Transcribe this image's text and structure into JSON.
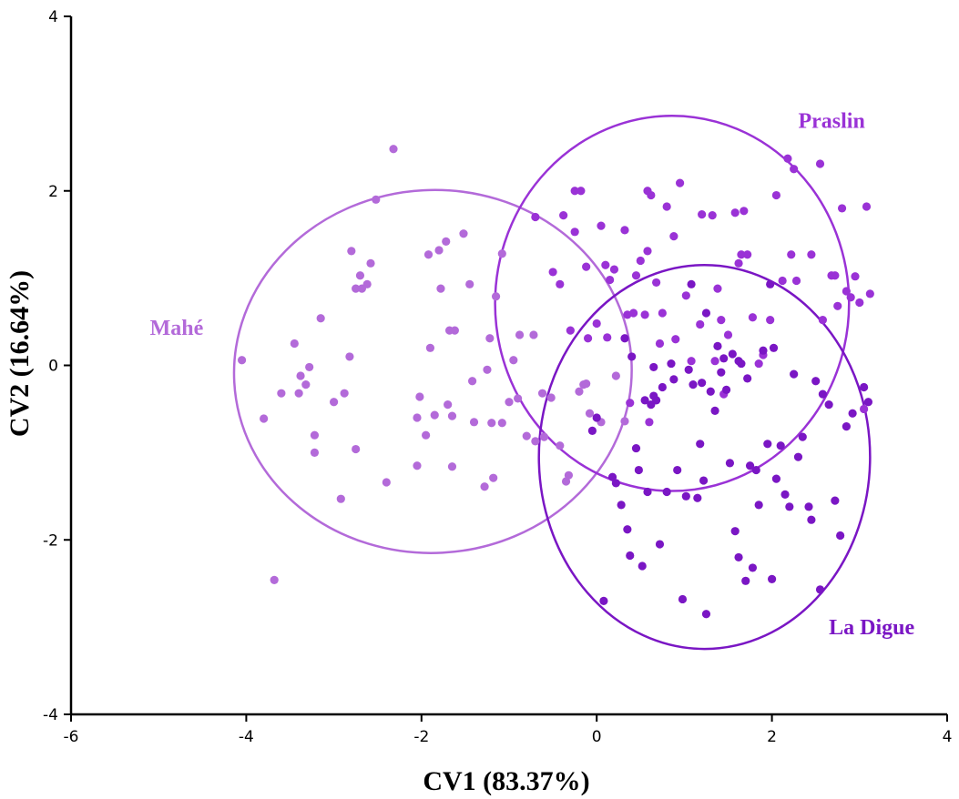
{
  "chart_data": {
    "type": "scatter",
    "xlabel": "CV1 (83.37%)",
    "ylabel": "CV2 (16.64%)",
    "xlim": [
      -6,
      4
    ],
    "ylim": [
      -4,
      4
    ],
    "xticks": [
      -6,
      -4,
      -2,
      0,
      2,
      4
    ],
    "yticks": [
      -4,
      -2,
      0,
      2,
      4
    ],
    "xtick_labels": [
      "-6",
      "-4",
      "-2",
      "0",
      "2",
      "4"
    ],
    "ytick_labels": [
      "-4",
      "-2",
      "0",
      "2",
      "4"
    ],
    "grid": false,
    "series": [
      {
        "name": "Mahé",
        "color": "#b36ad9",
        "label_anchor": [
          -5.1,
          0.35
        ],
        "ellipse": {
          "cx": -1.87,
          "cy": -0.07,
          "rx": 2.27,
          "ry": 2.08,
          "angle_deg": -3
        },
        "x": [
          -4.05,
          -3.8,
          -3.68,
          -3.6,
          -3.45,
          -3.4,
          -3.38,
          -3.32,
          -3.28,
          -3.22,
          -3.22,
          -3.15,
          -3.0,
          -2.92,
          -2.88,
          -2.82,
          -2.8,
          -2.75,
          -2.75,
          -2.7,
          -2.68,
          -2.62,
          -2.58,
          -2.52,
          -2.4,
          -2.32,
          -2.05,
          -2.05,
          -2.02,
          -1.95,
          -1.92,
          -1.9,
          -1.85,
          -1.8,
          -1.78,
          -1.72,
          -1.7,
          -1.68,
          -1.65,
          -1.65,
          -1.62,
          -1.52,
          -1.45,
          -1.42,
          -1.4,
          -1.28,
          -1.25,
          -1.22,
          -1.2,
          -1.18,
          -1.15,
          -1.08,
          -1.08,
          -1.0,
          -0.95,
          -0.9,
          -0.88,
          -0.8,
          -0.72,
          -0.7,
          -0.62,
          -0.6,
          -0.52,
          -0.42,
          -0.35,
          -0.32,
          -0.2,
          -0.15,
          -0.12,
          -0.08,
          0.05,
          0.22,
          0.32
        ],
        "y": [
          0.06,
          -0.61,
          -2.46,
          -0.32,
          0.25,
          -0.32,
          -0.12,
          -0.22,
          -0.02,
          -1.0,
          -0.8,
          0.54,
          -0.42,
          -1.53,
          -0.32,
          0.1,
          1.31,
          -0.96,
          0.88,
          1.03,
          0.88,
          0.93,
          1.17,
          1.9,
          -1.34,
          2.48,
          -1.15,
          -0.6,
          -0.36,
          -0.8,
          1.27,
          0.2,
          -0.57,
          1.32,
          0.88,
          1.42,
          -0.45,
          0.4,
          -0.58,
          -1.16,
          0.4,
          1.51,
          0.93,
          -0.18,
          -0.65,
          -1.39,
          -0.05,
          0.31,
          -0.66,
          -1.29,
          0.79,
          -0.66,
          1.28,
          -0.42,
          0.06,
          -0.38,
          0.35,
          -0.81,
          0.35,
          -0.87,
          -0.32,
          -0.82,
          -0.37,
          -0.92,
          -1.33,
          -1.26,
          -0.3,
          -0.22,
          -0.21,
          -0.55,
          -0.65,
          -0.12,
          -0.64
        ]
      },
      {
        "name": "Praslin",
        "color": "#9a32d6",
        "label_anchor": [
          2.3,
          2.72
        ],
        "ellipse": {
          "cx": 0.86,
          "cy": 0.71,
          "rx": 2.02,
          "ry": 2.15,
          "angle_deg": 0
        },
        "x": [
          -0.7,
          -0.5,
          -0.42,
          -0.38,
          -0.3,
          -0.25,
          -0.25,
          -0.18,
          -0.12,
          -0.1,
          0.0,
          0.05,
          0.1,
          0.12,
          0.15,
          0.2,
          0.32,
          0.35,
          0.38,
          0.42,
          0.45,
          0.5,
          0.55,
          0.58,
          0.58,
          0.6,
          0.62,
          0.68,
          0.72,
          0.75,
          0.8,
          0.88,
          0.9,
          0.95,
          1.02,
          1.08,
          1.18,
          1.2,
          1.32,
          1.35,
          1.38,
          1.42,
          1.5,
          1.58,
          1.62,
          1.65,
          1.68,
          1.72,
          1.78,
          1.85,
          1.9,
          1.98,
          2.05,
          2.12,
          2.18,
          2.22,
          2.25,
          2.28,
          2.45,
          2.55,
          2.58,
          2.68,
          2.72,
          2.75,
          2.8,
          2.85,
          2.9,
          2.95,
          3.0,
          3.05,
          3.08,
          3.12,
          1.45
        ],
        "y": [
          1.7,
          1.07,
          0.93,
          1.72,
          0.4,
          1.53,
          2.0,
          2.0,
          1.13,
          0.31,
          0.48,
          1.6,
          1.15,
          0.32,
          0.98,
          1.1,
          1.55,
          0.58,
          -0.43,
          0.6,
          1.03,
          1.2,
          0.58,
          2.0,
          1.31,
          -0.65,
          1.95,
          0.95,
          0.25,
          0.6,
          1.82,
          1.48,
          0.3,
          2.09,
          0.8,
          0.05,
          0.47,
          1.73,
          1.72,
          0.05,
          0.88,
          0.52,
          0.35,
          1.75,
          1.17,
          1.27,
          1.77,
          1.27,
          0.55,
          0.02,
          0.12,
          0.52,
          1.95,
          0.97,
          2.37,
          1.27,
          2.25,
          0.97,
          1.27,
          2.31,
          0.52,
          1.03,
          1.03,
          0.68,
          1.8,
          0.85,
          0.78,
          1.02,
          0.72,
          -0.5,
          1.82,
          0.82,
          -0.33
        ]
      },
      {
        "name": "La Digue",
        "color": "#7a16c4",
        "label_anchor": [
          2.65,
          -3.08
        ],
        "ellipse": {
          "cx": 1.23,
          "cy": -1.05,
          "rx": 1.89,
          "ry": 2.2,
          "angle_deg": 0
        },
        "x": [
          -0.05,
          0.0,
          0.08,
          0.18,
          0.22,
          0.28,
          0.32,
          0.35,
          0.38,
          0.45,
          0.48,
          0.52,
          0.55,
          0.58,
          0.62,
          0.65,
          0.68,
          0.72,
          0.75,
          0.8,
          0.85,
          0.88,
          0.92,
          0.98,
          1.02,
          1.05,
          1.1,
          1.15,
          1.18,
          1.2,
          1.22,
          1.25,
          1.3,
          1.35,
          1.38,
          1.42,
          1.48,
          1.52,
          1.55,
          1.58,
          1.62,
          1.65,
          1.7,
          1.72,
          1.75,
          1.78,
          1.82,
          1.85,
          1.9,
          1.95,
          2.0,
          2.02,
          2.05,
          2.1,
          2.15,
          2.2,
          2.25,
          2.3,
          2.35,
          2.42,
          2.45,
          2.5,
          2.55,
          2.58,
          2.65,
          2.72,
          2.78,
          2.85,
          2.92,
          3.05,
          3.1,
          0.4,
          0.65,
          1.08,
          1.25,
          1.45,
          1.62,
          1.98
        ],
        "y": [
          -0.75,
          -0.6,
          -2.7,
          -1.28,
          -1.35,
          -1.6,
          0.31,
          -1.88,
          -2.18,
          -0.95,
          -1.2,
          -2.3,
          -0.4,
          -1.45,
          -0.45,
          -0.35,
          -0.4,
          -2.05,
          -0.25,
          -1.45,
          0.02,
          -0.16,
          -1.2,
          -2.68,
          -1.5,
          -0.05,
          -0.22,
          -1.52,
          -0.9,
          -0.2,
          -1.32,
          -2.85,
          -0.3,
          -0.52,
          0.22,
          -0.08,
          -0.28,
          -1.12,
          0.13,
          -1.9,
          -2.2,
          0.02,
          -2.47,
          -0.15,
          -1.15,
          -2.32,
          -1.2,
          -1.6,
          0.17,
          -0.9,
          -2.45,
          0.2,
          -1.3,
          -0.92,
          -1.48,
          -1.62,
          -0.1,
          -1.05,
          -0.82,
          -1.62,
          -1.77,
          -0.18,
          -2.57,
          -0.33,
          -0.45,
          -1.55,
          -1.95,
          -0.7,
          -0.55,
          -0.25,
          -0.42,
          0.1,
          -0.02,
          0.93,
          0.6,
          0.08,
          0.05,
          0.93
        ]
      }
    ]
  }
}
